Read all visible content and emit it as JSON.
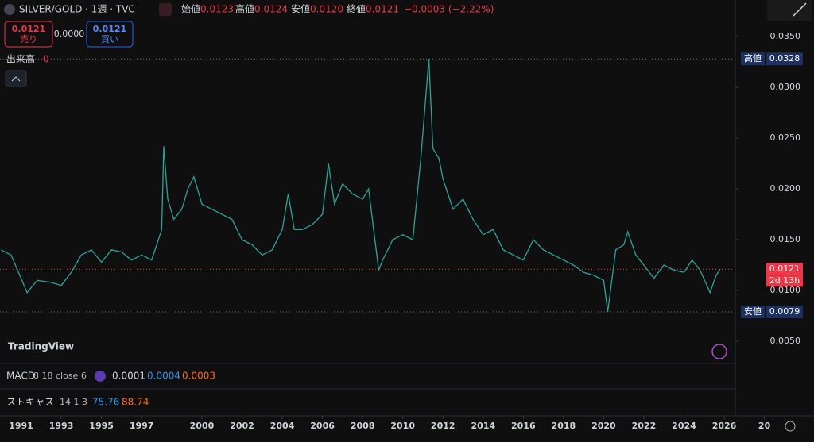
{
  "header": {
    "symbol": "SILVER/GOLD · 1週 · TVC",
    "open_label": "始値",
    "open": "0.0123",
    "high_label": "高値",
    "high": "0.0124",
    "low_label": "安値",
    "low": "0.0120",
    "close_label": "終値",
    "close": "0.0121",
    "change": "−0.0003 (−2.22%)"
  },
  "trade": {
    "sell_price": "0.0121",
    "sell_label": "売り",
    "spread": "0.0000",
    "buy_price": "0.0121",
    "buy_label": "買い"
  },
  "volume": {
    "label": "出来高",
    "value": "0"
  },
  "logo": "TradingView",
  "chart": {
    "type": "line",
    "color": "#26a69a",
    "x": [
      1990.0,
      1990.5,
      1991.0,
      1991.3,
      1991.8,
      1992.5,
      1993.0,
      1993.5,
      1994.0,
      1994.5,
      1995.0,
      1995.5,
      1996.0,
      1996.5,
      1997.0,
      1997.5,
      1998.0,
      1998.1,
      1998.3,
      1998.6,
      1999.0,
      1999.3,
      1999.6,
      2000.0,
      2000.5,
      2001.0,
      2001.5,
      2002.0,
      2002.5,
      2003.0,
      2003.5,
      2004.0,
      2004.3,
      2004.6,
      2005.0,
      2005.5,
      2006.0,
      2006.3,
      2006.6,
      2007.0,
      2007.5,
      2008.0,
      2008.3,
      2008.8,
      2009.0,
      2009.5,
      2010.0,
      2010.5,
      2010.9,
      2011.3,
      2011.5,
      2011.8,
      2012.0,
      2012.5,
      2013.0,
      2013.5,
      2014.0,
      2014.5,
      2015.0,
      2015.5,
      2016.0,
      2016.5,
      2017.0,
      2017.5,
      2018.0,
      2018.5,
      2019.0,
      2019.5,
      2020.0,
      2020.2,
      2020.6,
      2021.0,
      2021.2,
      2021.6,
      2022.0,
      2022.5,
      2023.0,
      2023.5,
      2024.0,
      2024.4,
      2024.8,
      2025.3,
      2025.6,
      2025.8
    ],
    "values": [
      0.014,
      0.0135,
      0.0112,
      0.0098,
      0.011,
      0.0108,
      0.0105,
      0.0118,
      0.0135,
      0.014,
      0.0128,
      0.014,
      0.0138,
      0.013,
      0.0135,
      0.013,
      0.016,
      0.0242,
      0.019,
      0.017,
      0.018,
      0.02,
      0.0212,
      0.0185,
      0.018,
      0.0175,
      0.017,
      0.015,
      0.0145,
      0.0135,
      0.014,
      0.016,
      0.0195,
      0.016,
      0.016,
      0.0165,
      0.0175,
      0.0225,
      0.0185,
      0.0205,
      0.0195,
      0.019,
      0.02,
      0.012,
      0.013,
      0.015,
      0.0155,
      0.015,
      0.023,
      0.0328,
      0.024,
      0.023,
      0.021,
      0.018,
      0.019,
      0.017,
      0.0155,
      0.016,
      0.014,
      0.0135,
      0.013,
      0.015,
      0.014,
      0.0135,
      0.013,
      0.0125,
      0.0118,
      0.0115,
      0.011,
      0.0079,
      0.014,
      0.0145,
      0.0158,
      0.0135,
      0.0125,
      0.0112,
      0.0125,
      0.012,
      0.0118,
      0.013,
      0.012,
      0.0098,
      0.0115,
      0.0121
    ],
    "xlim": [
      1989.95,
      2030.47
    ],
    "ylim": [
      0.0029,
      0.0386
    ],
    "yticks": [
      {
        "value": 0.035,
        "label": "0.0350"
      },
      {
        "value": 0.03,
        "label": "0.0300"
      },
      {
        "value": 0.025,
        "label": "0.0250"
      },
      {
        "value": 0.02,
        "label": "0.0200"
      },
      {
        "value": 0.015,
        "label": "0.0150"
      },
      {
        "value": 0.01,
        "label": "0.0100"
      },
      {
        "value": 0.005,
        "label": "0.0050"
      }
    ],
    "xticks": [
      1991,
      1993,
      1995,
      1997,
      2000,
      2002,
      2004,
      2006,
      2008,
      2010,
      2012,
      2014,
      2016,
      2018,
      2020,
      2022,
      2024,
      2026,
      {
        "value": 2028,
        "label": "20"
      }
    ]
  },
  "price_labels": {
    "high_label": "高値",
    "high": 0.0328,
    "low_label": "安値",
    "low": 0.0079,
    "last": 0.0121,
    "countdown": "2d 13h"
  },
  "indicators": {
    "macd_name": "MACD",
    "macd_params": "8 18 close 6",
    "macd_values": [
      "0.0001",
      "0.0004",
      "0.0003"
    ],
    "stoch_name": "ストキャス",
    "stoch_params": "14 1 3",
    "stoch_values": [
      "75.76",
      "88.74"
    ]
  }
}
